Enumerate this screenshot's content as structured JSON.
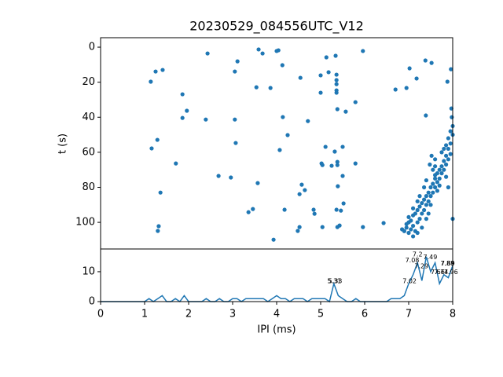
{
  "chart_data": [
    {
      "type": "scatter",
      "title": "20230529_084556UTC_V12",
      "ylabel": "t (s)",
      "color": "#1f77b4",
      "xlim": [
        0,
        8
      ],
      "ylim": [
        115.2,
        -5.4
      ],
      "yticks": [
        0,
        20,
        40,
        60,
        80,
        100
      ],
      "x": [
        1.14,
        1.25,
        1.41,
        2.43,
        3.05,
        3.11,
        3.59,
        3.68,
        3.54,
        3.86,
        4.0,
        4.04,
        4.13,
        4.54,
        5.13,
        5.34,
        5.96,
        5.0,
        5.18,
        5.36,
        5.36,
        5.36,
        5.36,
        5.36,
        5.0,
        5.79,
        5.38,
        5.57,
        1.86,
        1.96,
        1.86,
        2.39,
        3.05,
        3.07,
        4.14,
        4.71,
        4.25,
        4.07,
        1.16,
        1.29,
        1.71,
        2.68,
        2.96,
        3.57,
        4.57,
        4.64,
        4.52,
        5.11,
        5.5,
        5.32,
        5.02,
        5.04,
        5.25,
        5.38,
        5.38,
        5.79,
        5.5,
        5.39,
        1.36,
        3.36,
        3.46,
        4.18,
        4.84,
        4.86,
        5.36,
        5.46,
        5.52,
        1.32,
        1.3,
        3.93,
        4.52,
        4.48,
        5.04,
        5.38,
        5.43,
        5.96,
        6.43,
        6.7,
        6.95,
        7.02,
        7.18,
        7.38,
        7.52,
        7.88,
        7.96,
        7.39,
        6.85,
        6.9,
        6.95,
        7.0,
        7.05,
        7.1,
        7.15,
        7.2,
        7.25,
        7.0,
        7.05,
        7.1,
        7.15,
        7.2,
        7.25,
        7.3,
        7.35,
        7.4,
        7.45,
        7.3,
        7.35,
        7.4,
        7.45,
        7.5,
        7.55,
        7.6,
        7.65,
        7.5,
        7.55,
        7.6,
        7.65,
        7.7,
        7.75,
        7.8,
        7.85,
        7.7,
        7.75,
        7.8,
        7.85,
        7.9,
        7.95,
        7.9,
        7.95,
        8.0,
        7.95,
        7.9,
        7.85,
        8.0,
        7.98,
        7.97,
        7.6,
        7.55,
        7.4,
        7.35,
        7.25,
        7.2,
        7.1,
        7.0,
        6.95,
        7.3,
        7.2,
        7.1,
        7.4,
        7.45,
        7.5,
        7.65,
        7.7,
        7.75,
        7.8,
        7.85,
        8.0,
        7.9,
        7.6,
        7.48,
        7.52,
        7.6
      ],
      "y": [
        19.7,
        13.9,
        13,
        3.6,
        13.9,
        8.1,
        1.3,
        3.6,
        22.9,
        23.3,
        2.2,
        1.8,
        10.3,
        17.5,
        5.8,
        4.9,
        2.2,
        16.1,
        14.3,
        15.7,
        18.8,
        21.1,
        24.7,
        26,
        26,
        31.4,
        35.4,
        36.8,
        26.9,
        36.3,
        40.4,
        41.3,
        41.3,
        54.7,
        39.9,
        42.2,
        50.2,
        58.7,
        57.8,
        52.9,
        66.4,
        73.5,
        74.4,
        77.6,
        78.5,
        81.6,
        83.9,
        56.9,
        56.9,
        59.6,
        66.4,
        67.3,
        67.7,
        65.5,
        67.3,
        66.4,
        73.5,
        79.4,
        83,
        94.2,
        92.4,
        92.8,
        92.8,
        95.1,
        92.8,
        93.3,
        89.2,
        102.2,
        104.9,
        109.9,
        102.7,
        104.9,
        102.7,
        102.7,
        101.8,
        102.7,
        100.4,
        24.2,
        23.3,
        12.1,
        17.9,
        7.6,
        9,
        19.7,
        12.6,
        39,
        104,
        105,
        103,
        106,
        104,
        102,
        105,
        100,
        98,
        97,
        99,
        96,
        95,
        93,
        91,
        89,
        87,
        85,
        83,
        95,
        93,
        90,
        88,
        80,
        78,
        75,
        72,
        85,
        83,
        80,
        77,
        70,
        68,
        65,
        62,
        75,
        72,
        70,
        67,
        58,
        55,
        64,
        61,
        50,
        48,
        52,
        56,
        45,
        40,
        35,
        68,
        70,
        76,
        80,
        85,
        88,
        92,
        100,
        101,
        103,
        106,
        108,
        98,
        95,
        90,
        82,
        79,
        60,
        58,
        74,
        98,
        80,
        73,
        67,
        62,
        64
      ]
    },
    {
      "type": "line",
      "xlabel": "IPI (ms)",
      "color": "#1f77b4",
      "xlim": [
        0,
        8
      ],
      "ylim": [
        0,
        17.6
      ],
      "xticks": [
        0,
        1,
        2,
        3,
        4,
        5,
        6,
        7,
        8
      ],
      "yticks": [
        0,
        10
      ],
      "x": [
        0,
        0.1,
        0.2,
        0.3,
        0.4,
        0.5,
        0.6,
        0.7,
        0.8,
        0.9,
        1.0,
        1.1,
        1.2,
        1.3,
        1.4,
        1.5,
        1.6,
        1.7,
        1.8,
        1.9,
        2.0,
        2.1,
        2.2,
        2.3,
        2.4,
        2.5,
        2.6,
        2.7,
        2.8,
        2.9,
        3.0,
        3.1,
        3.2,
        3.3,
        3.4,
        3.5,
        3.6,
        3.7,
        3.8,
        3.9,
        4.0,
        4.1,
        4.2,
        4.3,
        4.4,
        4.5,
        4.6,
        4.7,
        4.8,
        4.9,
        5.0,
        5.1,
        5.2,
        5.3,
        5.4,
        5.5,
        5.6,
        5.7,
        5.8,
        5.9,
        6.0,
        6.1,
        6.2,
        6.3,
        6.4,
        6.5,
        6.6,
        6.7,
        6.8,
        6.9,
        7.0,
        7.1,
        7.2,
        7.3,
        7.4,
        7.5,
        7.6,
        7.7,
        7.8,
        7.9,
        8.0
      ],
      "values": [
        0,
        0,
        0,
        0,
        0,
        0,
        0,
        0,
        0,
        0,
        0,
        1,
        0,
        1,
        2,
        0,
        0,
        1,
        0,
        2,
        0,
        0,
        0,
        0,
        1,
        0,
        0,
        1,
        0,
        0,
        1,
        1,
        0,
        1,
        1,
        1,
        1,
        1,
        0,
        1,
        2,
        1,
        1,
        0,
        1,
        1,
        1,
        0,
        1,
        1,
        1,
        1,
        0,
        6,
        2,
        1,
        0,
        0,
        1,
        0,
        0,
        0,
        0,
        0,
        0,
        0,
        1,
        1,
        1,
        2,
        6,
        9,
        13,
        7,
        15,
        10,
        13,
        6,
        9,
        8,
        12
      ],
      "annotations": [
        {
          "text": "5.31",
          "x": 5.31,
          "y": 6
        },
        {
          "text": "5.33",
          "x": 5.33,
          "y": 6
        },
        {
          "text": "7.02",
          "x": 7.02,
          "y": 6
        },
        {
          "text": "7.08",
          "x": 7.08,
          "y": 13
        },
        {
          "text": "7.2",
          "x": 7.2,
          "y": 15
        },
        {
          "text": "7.49",
          "x": 7.49,
          "y": 14
        },
        {
          "text": "7.29",
          "x": 7.29,
          "y": 11
        },
        {
          "text": "7.88",
          "x": 7.88,
          "y": 12
        },
        {
          "text": "7.89",
          "x": 7.89,
          "y": 12
        },
        {
          "text": "7.74",
          "x": 7.74,
          "y": 9
        },
        {
          "text": "7.96",
          "x": 7.96,
          "y": 9
        },
        {
          "text": "7.66",
          "x": 7.66,
          "y": 9
        }
      ]
    }
  ]
}
